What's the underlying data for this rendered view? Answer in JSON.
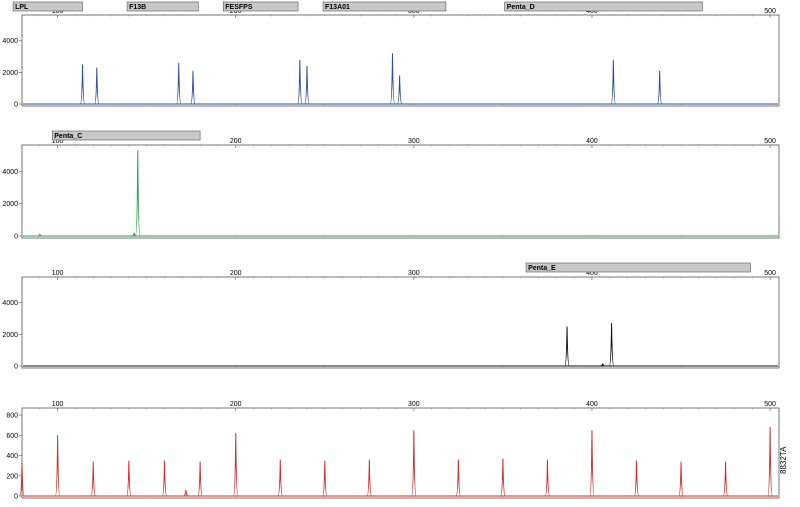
{
  "figure": {
    "id_label": "8832TA"
  },
  "chart_data": [
    {
      "type": "line",
      "panel": "blue",
      "color": "#2a4d9e",
      "xlim": [
        80,
        505
      ],
      "ylim": [
        0,
        5500
      ],
      "x_ticks": [
        100,
        200,
        300,
        400,
        500
      ],
      "y_ticks": [
        0,
        2000,
        4000
      ],
      "markers": [
        {
          "name": "LPL",
          "range": [
            75,
            114
          ]
        },
        {
          "name": "F13B",
          "range": [
            139,
            179
          ]
        },
        {
          "name": "FESFPS",
          "range": [
            193,
            235
          ]
        },
        {
          "name": "F13A01",
          "range": [
            249,
            318
          ]
        },
        {
          "name": "Penta_D",
          "range": [
            351,
            462
          ]
        }
      ],
      "peaks": [
        {
          "x": 114,
          "height": 2500
        },
        {
          "x": 122,
          "height": 2300
        },
        {
          "x": 168,
          "height": 2600
        },
        {
          "x": 176,
          "height": 2100
        },
        {
          "x": 236,
          "height": 2800
        },
        {
          "x": 240,
          "height": 2400
        },
        {
          "x": 288,
          "height": 3200
        },
        {
          "x": 292,
          "height": 1800
        },
        {
          "x": 412,
          "height": 2800
        },
        {
          "x": 438,
          "height": 2100
        }
      ]
    },
    {
      "type": "line",
      "panel": "green",
      "color": "#2e9e4a",
      "xlim": [
        80,
        505
      ],
      "ylim": [
        0,
        5500
      ],
      "x_ticks": [
        100,
        200,
        300,
        400,
        500
      ],
      "y_ticks": [
        0,
        2000,
        4000
      ],
      "markers": [
        {
          "name": "Penta_C",
          "range": [
            97,
            180
          ]
        }
      ],
      "peaks": [
        {
          "x": 145,
          "height": 5300
        },
        {
          "x": 143,
          "height": 200
        },
        {
          "x": 90,
          "height": 100
        }
      ]
    },
    {
      "type": "line",
      "panel": "black",
      "color": "#111111",
      "xlim": [
        80,
        505
      ],
      "ylim": [
        0,
        5500
      ],
      "x_ticks": [
        100,
        200,
        300,
        400,
        500
      ],
      "y_ticks": [
        0,
        2000,
        4000
      ],
      "markers": [
        {
          "name": "Penta_E",
          "range": [
            363,
            489
          ]
        }
      ],
      "peaks": [
        {
          "x": 386,
          "height": 2500
        },
        {
          "x": 411,
          "height": 2700
        },
        {
          "x": 406,
          "height": 150
        }
      ]
    },
    {
      "type": "line",
      "panel": "red",
      "color": "#d42a2a",
      "xlim": [
        80,
        505
      ],
      "ylim": [
        0,
        850
      ],
      "x_ticks": [
        100,
        200,
        300,
        400,
        500
      ],
      "y_ticks": [
        0,
        200,
        400,
        600,
        800
      ],
      "markers": [],
      "peaks": [
        {
          "x": 80,
          "height": 330
        },
        {
          "x": 100,
          "height": 600
        },
        {
          "x": 120,
          "height": 340
        },
        {
          "x": 140,
          "height": 350
        },
        {
          "x": 160,
          "height": 350
        },
        {
          "x": 180,
          "height": 340
        },
        {
          "x": 200,
          "height": 620
        },
        {
          "x": 225,
          "height": 360
        },
        {
          "x": 250,
          "height": 350
        },
        {
          "x": 275,
          "height": 360
        },
        {
          "x": 300,
          "height": 650
        },
        {
          "x": 325,
          "height": 360
        },
        {
          "x": 350,
          "height": 370
        },
        {
          "x": 375,
          "height": 360
        },
        {
          "x": 400,
          "height": 650
        },
        {
          "x": 425,
          "height": 350
        },
        {
          "x": 450,
          "height": 340
        },
        {
          "x": 475,
          "height": 340
        },
        {
          "x": 500,
          "height": 680
        },
        {
          "x": 172,
          "height": 60
        }
      ]
    }
  ]
}
